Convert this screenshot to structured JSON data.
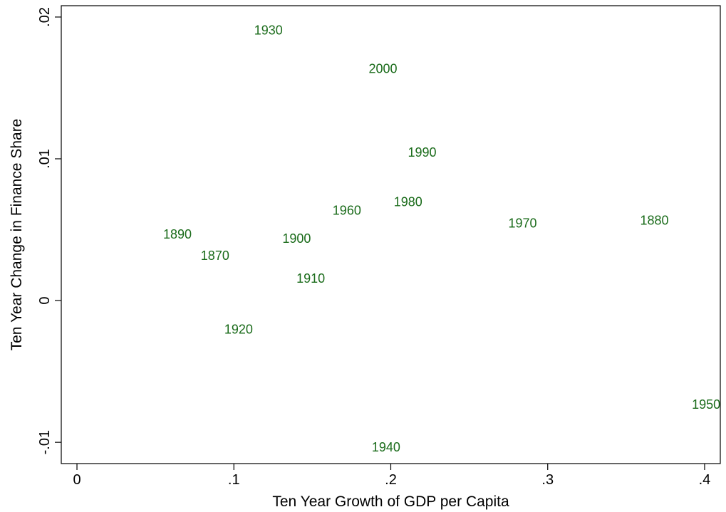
{
  "chart_data": {
    "type": "scatter",
    "xlabel": "Ten Year Growth of GDP per Capita",
    "ylabel": "Ten Year Change in Finance Share",
    "xlim": [
      -0.01,
      0.41
    ],
    "ylim": [
      -0.0115,
      0.0208
    ],
    "xticks": [
      0,
      0.1,
      0.2,
      0.3,
      0.4
    ],
    "xtick_labels": [
      "0",
      ".1",
      ".2",
      ".3",
      ".4"
    ],
    "yticks": [
      -0.01,
      0,
      0.01,
      0.02
    ],
    "ytick_labels": [
      "-.01",
      "0",
      ".01",
      ".02"
    ],
    "grid": false,
    "marker_color": "#1a6b1a",
    "axis_color": "#000000",
    "points": [
      {
        "label": "1870",
        "x": 0.088,
        "y": 0.0031
      },
      {
        "label": "1880",
        "x": 0.368,
        "y": 0.0056
      },
      {
        "label": "1890",
        "x": 0.064,
        "y": 0.0046
      },
      {
        "label": "1900",
        "x": 0.14,
        "y": 0.0043
      },
      {
        "label": "1910",
        "x": 0.149,
        "y": 0.0015
      },
      {
        "label": "1920",
        "x": 0.103,
        "y": -0.0021
      },
      {
        "label": "1930",
        "x": 0.122,
        "y": 0.019
      },
      {
        "label": "1940",
        "x": 0.197,
        "y": -0.0104
      },
      {
        "label": "1950",
        "x": 0.401,
        "y": -0.0074
      },
      {
        "label": "1960",
        "x": 0.172,
        "y": 0.0063
      },
      {
        "label": "1970",
        "x": 0.284,
        "y": 0.0054
      },
      {
        "label": "1980",
        "x": 0.211,
        "y": 0.0069
      },
      {
        "label": "1990",
        "x": 0.22,
        "y": 0.0104
      },
      {
        "label": "2000",
        "x": 0.195,
        "y": 0.0163
      }
    ]
  }
}
